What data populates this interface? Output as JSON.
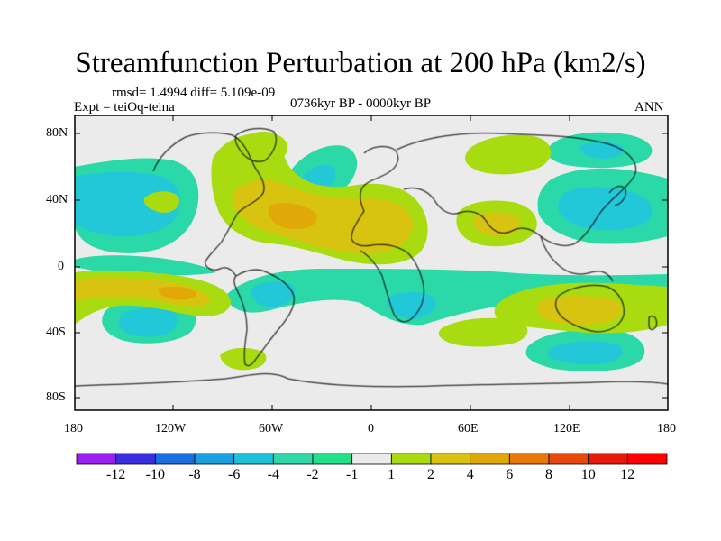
{
  "title": "Streamfunction Perturbation at 200 hPa (km2/s)",
  "stats": "rmsd= 1.4994 diff= 5.109e-09",
  "experiment": "Expt = teiOq-teina",
  "period": "0736kyr BP - 0000kyr BP",
  "season": "ANN",
  "lat_ticks": [
    "80N",
    "40N",
    "0",
    "40S",
    "80S"
  ],
  "lon_ticks": [
    "180",
    "120W",
    "60W",
    "0",
    "60E",
    "120E",
    "180"
  ],
  "legend": {
    "labels": [
      "-12",
      "-10",
      "-8",
      "-6",
      "-4",
      "-2",
      "-1",
      "1",
      "2",
      "4",
      "6",
      "8",
      "10",
      "12"
    ],
    "colors": [
      "#9a1ff0",
      "#3a2fe0",
      "#1a6fe0",
      "#1aa0e0",
      "#20c0d8",
      "#30d8a8",
      "#20e08a",
      "#ebebeb",
      "#a8dc10",
      "#d8c410",
      "#e0a808",
      "#e87808",
      "#e84808",
      "#e81808",
      "#ff0000"
    ]
  },
  "palette": {
    "neg2": "#2bd9a8",
    "neg4": "#22c8d8",
    "neg6": "#1aa0e0",
    "zero": "#ebebeb",
    "pos1": "#a8dc10",
    "pos2": "#d8c410",
    "pos3": "#e0a808",
    "pos4": "#e87808"
  }
}
